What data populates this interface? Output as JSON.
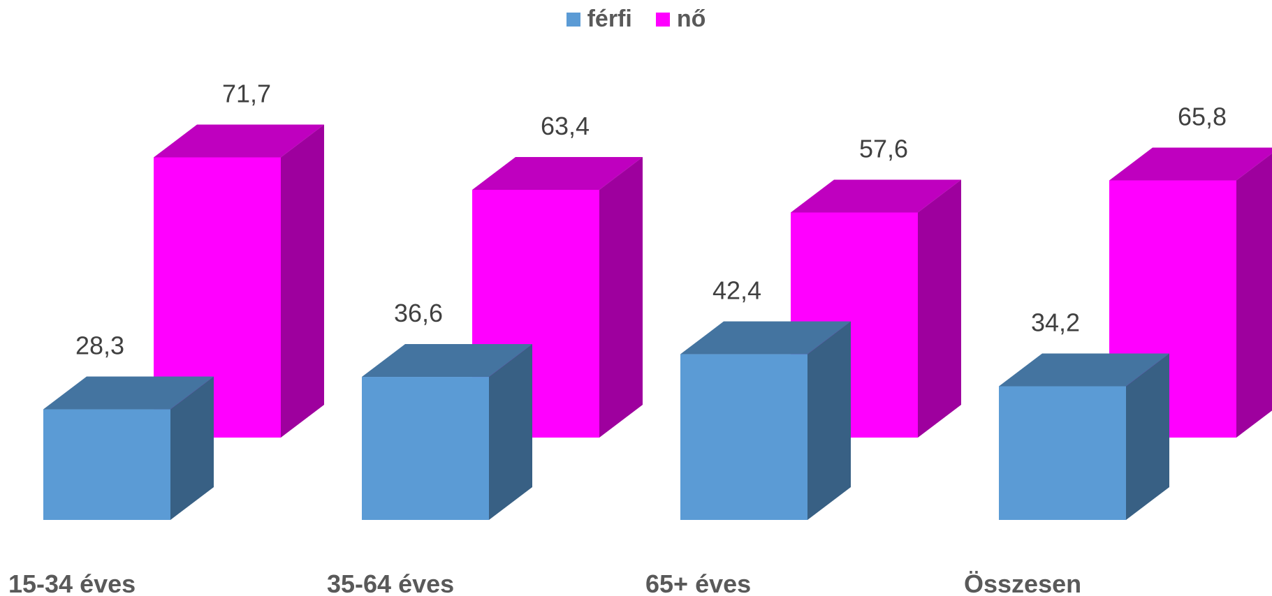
{
  "chart_data": {
    "type": "bar",
    "categories": [
      "15-34 éves",
      "35-64 éves",
      "65+ éves",
      "Összesen"
    ],
    "series": [
      {
        "name": "férfi",
        "values": [
          28.3,
          36.6,
          42.4,
          34.2
        ],
        "labels": [
          "28,3",
          "36,6",
          "42,4",
          "34,2"
        ],
        "color": "#5B9BD5"
      },
      {
        "name": "nő",
        "values": [
          71.7,
          63.4,
          57.6,
          65.8
        ],
        "labels": [
          "71,7",
          "63,4",
          "57,6",
          "65,8"
        ],
        "color": "#FF00FF"
      }
    ],
    "style": "3d-column",
    "legend_position": "top-center",
    "grid": false,
    "title": "",
    "xlabel": "",
    "ylabel": ""
  }
}
